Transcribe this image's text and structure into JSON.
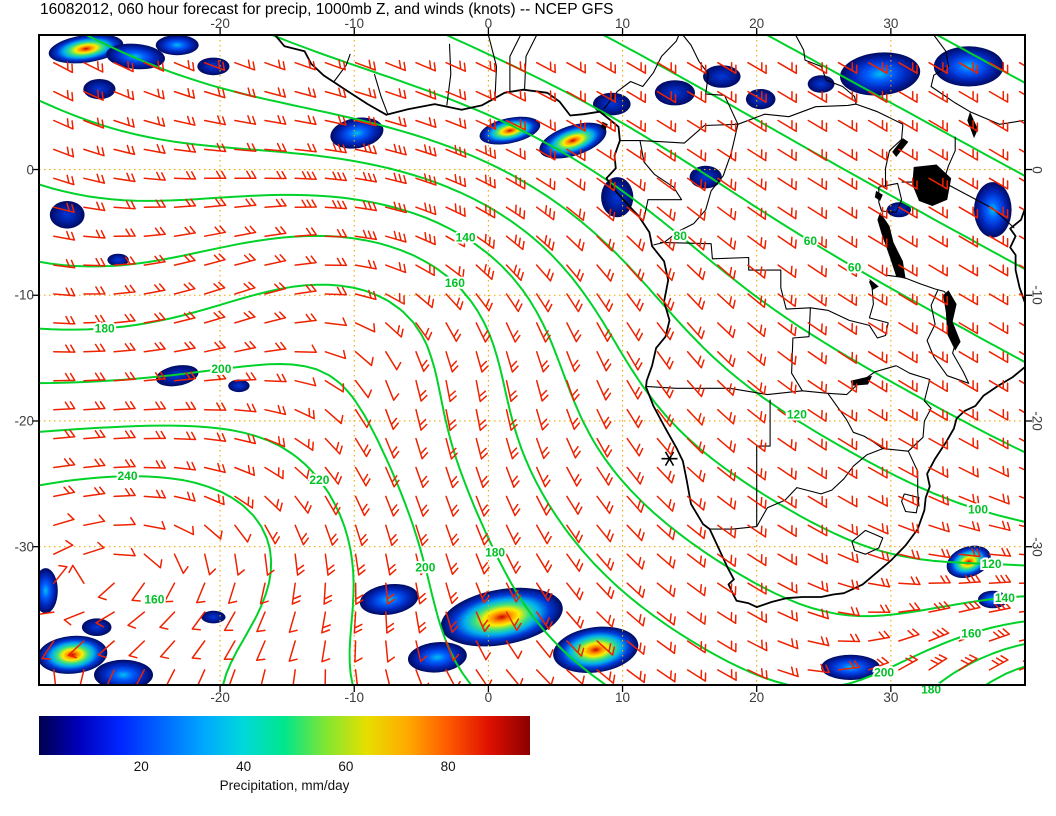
{
  "title": "16082012, 060 hour forecast for precip, 1000mb Z, and winds (knots) -- NCEP GFS",
  "chart_data": {
    "type": "heatmap",
    "title": "16082012, 060 hour forecast for precip, 1000mb Z, and winds (knots) -- NCEP GFS",
    "model": "NCEP GFS",
    "init_date": "16082012",
    "forecast_hour": "060",
    "fields": [
      "precipitation",
      "1000mb geopotential height (Z)",
      "winds (knots)"
    ],
    "projection": {
      "lon_range": [
        -33.5,
        40
      ],
      "lat_range": [
        -41,
        10.7
      ]
    },
    "x_axis": {
      "ticks": [
        -20,
        -10,
        0,
        10,
        20,
        30
      ]
    },
    "y_axis": {
      "ticks": [
        0,
        -10,
        -20,
        -30
      ]
    },
    "grid": {
      "show": true,
      "color": "#f0a800",
      "style": "dotted"
    },
    "coastline_color": "#000000",
    "contours": {
      "field": "1000mb Z",
      "color": "#00d22a",
      "levels": [
        0,
        20,
        40,
        60,
        80,
        100,
        120,
        140,
        160,
        180,
        200,
        220,
        240
      ],
      "labels": [
        {
          "value": 140,
          "lon": -1.7,
          "lat": -4.8
        },
        {
          "value": 160,
          "lon": -2.5,
          "lat": -12.2
        },
        {
          "value": 180,
          "lon": -28.6,
          "lat": -14.7
        },
        {
          "value": 200,
          "lon": -19.9,
          "lat": -18.3
        },
        {
          "value": 220,
          "lon": -12.6,
          "lat": -21.3
        },
        {
          "value": 240,
          "lon": -26.9,
          "lat": -25.3
        },
        {
          "value": 200,
          "lon": -4.7,
          "lat": -25.7
        },
        {
          "value": 180,
          "lon": 0.5,
          "lat": -30.3
        },
        {
          "value": 160,
          "lon": -24.9,
          "lat": -34.2
        },
        {
          "value": 80,
          "lon": 14.3,
          "lat": -7.8
        },
        {
          "value": 60,
          "lon": 27.3,
          "lat": -7.0
        },
        {
          "value": 60,
          "lon": 24.0,
          "lat": -2.0
        },
        {
          "value": 120,
          "lon": 23.0,
          "lat": -19.5
        },
        {
          "value": 100,
          "lon": 36.5,
          "lat": -24.0
        },
        {
          "value": 120,
          "lon": 37.5,
          "lat": -29.0
        },
        {
          "value": 140,
          "lon": 38.5,
          "lat": -33.5
        },
        {
          "value": 160,
          "lon": 36.0,
          "lat": -36.5
        },
        {
          "value": 180,
          "lon": 33.0,
          "lat": -38.5
        },
        {
          "value": 200,
          "lon": 29.5,
          "lat": -40.0
        }
      ]
    },
    "winds": {
      "units": "knots",
      "color": "#ee2200",
      "barb_spacing_deg": 2.3
    },
    "precipitation": {
      "units": "mm/day",
      "cells": [
        {
          "lon": -30.0,
          "lat": 9.6,
          "rx": 2.8,
          "ry": 1.1,
          "rot": -8,
          "intensity": "heavy"
        },
        {
          "lon": -26.3,
          "lat": 9.0,
          "rx": 2.2,
          "ry": 1.0,
          "rot": 5,
          "intensity": "med"
        },
        {
          "lon": -23.2,
          "lat": 9.9,
          "rx": 1.6,
          "ry": 0.8,
          "rot": 0,
          "intensity": "med"
        },
        {
          "lon": -29.0,
          "lat": 6.4,
          "rx": 1.2,
          "ry": 0.8,
          "rot": 0,
          "intensity": "light"
        },
        {
          "lon": -20.5,
          "lat": 8.2,
          "rx": 1.2,
          "ry": 0.7,
          "rot": 0,
          "intensity": "light"
        },
        {
          "lon": -9.8,
          "lat": 2.9,
          "rx": 2.0,
          "ry": 1.2,
          "rot": -10,
          "intensity": "med"
        },
        {
          "lon": 1.6,
          "lat": 3.1,
          "rx": 2.3,
          "ry": 1.0,
          "rot": -12,
          "intensity": "heavy"
        },
        {
          "lon": 6.3,
          "lat": 2.3,
          "rx": 2.6,
          "ry": 1.2,
          "rot": -18,
          "intensity": "heavy"
        },
        {
          "lon": 9.2,
          "lat": 5.2,
          "rx": 1.4,
          "ry": 0.9,
          "rot": 0,
          "intensity": "light"
        },
        {
          "lon": 9.6,
          "lat": -2.2,
          "rx": 1.2,
          "ry": 1.6,
          "rot": 0,
          "intensity": "light"
        },
        {
          "lon": 13.9,
          "lat": 6.1,
          "rx": 1.5,
          "ry": 1.0,
          "rot": 0,
          "intensity": "light"
        },
        {
          "lon": 17.4,
          "lat": 7.4,
          "rx": 1.4,
          "ry": 0.9,
          "rot": 0,
          "intensity": "light"
        },
        {
          "lon": 20.3,
          "lat": 5.6,
          "rx": 1.1,
          "ry": 0.8,
          "rot": 0,
          "intensity": "light"
        },
        {
          "lon": 16.2,
          "lat": -0.6,
          "rx": 1.2,
          "ry": 0.9,
          "rot": 0,
          "intensity": "light"
        },
        {
          "lon": 24.8,
          "lat": 6.8,
          "rx": 1.0,
          "ry": 0.7,
          "rot": 0,
          "intensity": "light"
        },
        {
          "lon": 29.2,
          "lat": 7.6,
          "rx": 3.0,
          "ry": 1.7,
          "rot": -5,
          "intensity": "med"
        },
        {
          "lon": 35.8,
          "lat": 8.2,
          "rx": 2.6,
          "ry": 1.6,
          "rot": 0,
          "intensity": "med"
        },
        {
          "lon": 37.6,
          "lat": -3.2,
          "rx": 1.4,
          "ry": 2.2,
          "rot": 0,
          "intensity": "med"
        },
        {
          "lon": 30.6,
          "lat": -3.2,
          "rx": 0.9,
          "ry": 0.6,
          "rot": 0,
          "intensity": "light"
        },
        {
          "lon": -31.4,
          "lat": -3.6,
          "rx": 1.3,
          "ry": 1.1,
          "rot": 0,
          "intensity": "light"
        },
        {
          "lon": -27.6,
          "lat": -7.2,
          "rx": 0.8,
          "ry": 0.5,
          "rot": 0,
          "intensity": "light"
        },
        {
          "lon": -23.2,
          "lat": -16.4,
          "rx": 1.6,
          "ry": 0.8,
          "rot": -10,
          "intensity": "light"
        },
        {
          "lon": -18.6,
          "lat": -17.2,
          "rx": 0.8,
          "ry": 0.5,
          "rot": 0,
          "intensity": "light"
        },
        {
          "lon": -33.0,
          "lat": -33.5,
          "rx": 0.9,
          "ry": 1.8,
          "rot": 0,
          "intensity": "med"
        },
        {
          "lon": -31.0,
          "lat": -38.6,
          "rx": 2.6,
          "ry": 1.5,
          "rot": -5,
          "intensity": "heavy"
        },
        {
          "lon": -27.2,
          "lat": -40.2,
          "rx": 2.2,
          "ry": 1.2,
          "rot": 0,
          "intensity": "med"
        },
        {
          "lon": -29.2,
          "lat": -36.4,
          "rx": 1.1,
          "ry": 0.7,
          "rot": 0,
          "intensity": "light"
        },
        {
          "lon": -20.5,
          "lat": -35.6,
          "rx": 0.9,
          "ry": 0.5,
          "rot": 0,
          "intensity": "light"
        },
        {
          "lon": -7.4,
          "lat": -34.2,
          "rx": 2.2,
          "ry": 1.2,
          "rot": -8,
          "intensity": "med"
        },
        {
          "lon": 1.0,
          "lat": -35.6,
          "rx": 4.6,
          "ry": 2.2,
          "rot": -10,
          "intensity": "heavy"
        },
        {
          "lon": 8.0,
          "lat": -38.2,
          "rx": 3.2,
          "ry": 1.8,
          "rot": -8,
          "intensity": "heavy"
        },
        {
          "lon": -3.8,
          "lat": -38.8,
          "rx": 2.2,
          "ry": 1.2,
          "rot": -5,
          "intensity": "med"
        },
        {
          "lon": 27.0,
          "lat": -39.6,
          "rx": 2.2,
          "ry": 1.0,
          "rot": 0,
          "intensity": "med"
        },
        {
          "lon": 35.8,
          "lat": -31.2,
          "rx": 1.7,
          "ry": 1.2,
          "rot": -20,
          "intensity": "heavy"
        },
        {
          "lon": 37.6,
          "lat": -34.2,
          "rx": 1.1,
          "ry": 0.7,
          "rot": 0,
          "intensity": "med"
        }
      ]
    },
    "colorbar": {
      "label": "Precipitation, mm/day",
      "ticks": [
        20,
        40,
        60,
        80
      ],
      "max": 96,
      "colors": [
        "#00004d",
        "#0000bf",
        "#0026ff",
        "#0066ff",
        "#00a6ff",
        "#00d9d9",
        "#00e68c",
        "#80e633",
        "#e6df00",
        "#ffaa00",
        "#ff5900",
        "#df1000",
        "#8b0000"
      ]
    },
    "marker": {
      "symbol": "*",
      "lon": 13.5,
      "lat": -23.0
    }
  }
}
